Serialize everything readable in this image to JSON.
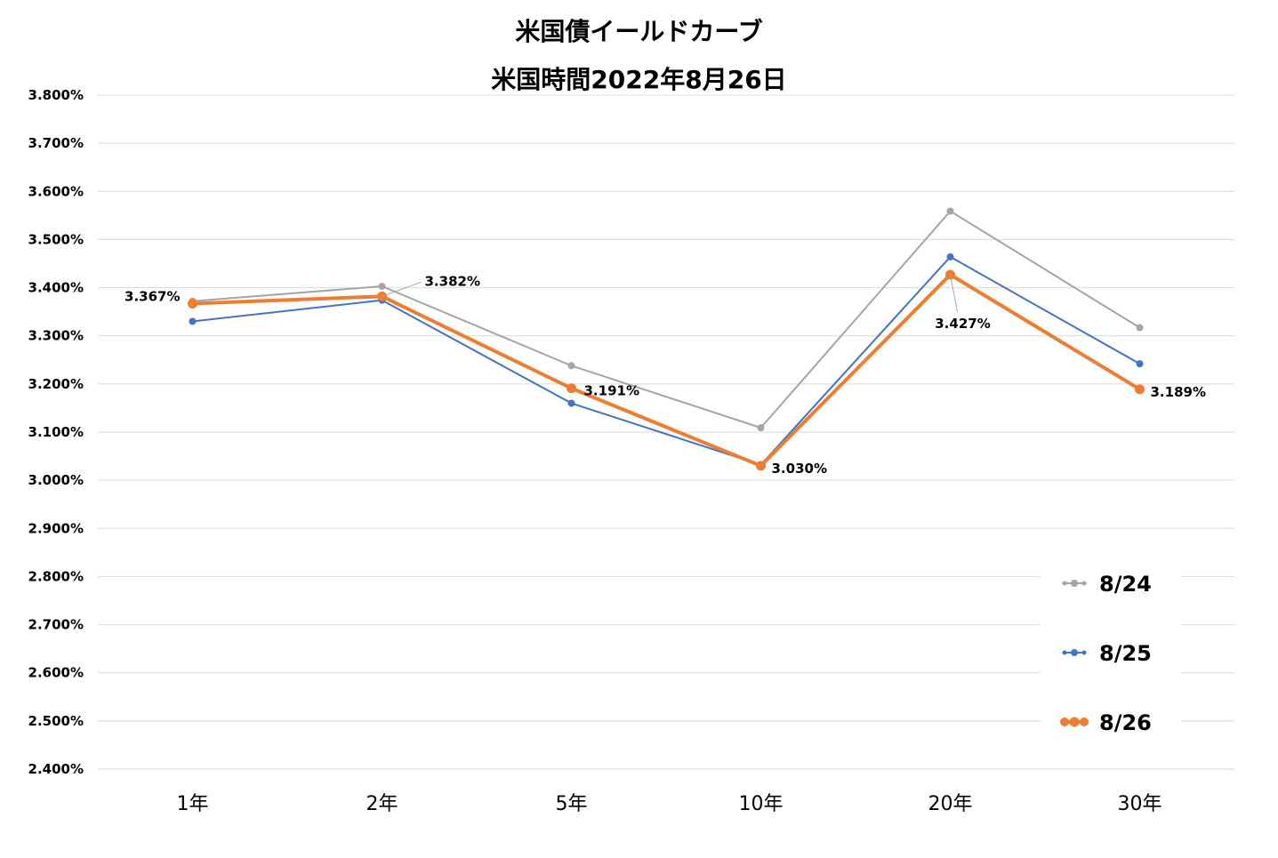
{
  "chart_data": {
    "type": "line",
    "title": "米国債イールドカーブ",
    "subtitle": "米国時間2022年8月26日",
    "categories": [
      "1年",
      "2年",
      "5年",
      "10年",
      "20年",
      "30年"
    ],
    "y_ticks": [
      "3.800%",
      "3.700%",
      "3.600%",
      "3.500%",
      "3.400%",
      "3.300%",
      "3.200%",
      "3.100%",
      "3.000%",
      "2.900%",
      "2.800%",
      "2.700%",
      "2.600%",
      "2.500%",
      "2.400%"
    ],
    "ylim": [
      2.4,
      3.8
    ],
    "grid": true,
    "legend_position": "bottom-right",
    "series": [
      {
        "name": "8/24",
        "color": "#a5a5a5",
        "values": [
          3.372,
          3.403,
          3.238,
          3.109,
          3.559,
          3.317
        ]
      },
      {
        "name": "8/25",
        "color": "#4472c4",
        "values": [
          3.33,
          3.374,
          3.16,
          3.032,
          3.464,
          3.242
        ]
      },
      {
        "name": "8/26",
        "color": "#ed7d31",
        "values": [
          3.367,
          3.382,
          3.191,
          3.03,
          3.427,
          3.189
        ]
      }
    ],
    "data_labels": [
      {
        "series": "8/26",
        "category": "1年",
        "text": "3.367%"
      },
      {
        "series": "8/26",
        "category": "2年",
        "text": "3.382%"
      },
      {
        "series": "8/26",
        "category": "5年",
        "text": "3.191%"
      },
      {
        "series": "8/26",
        "category": "10年",
        "text": "3.030%"
      },
      {
        "series": "8/26",
        "category": "20年",
        "text": "3.427%"
      },
      {
        "series": "8/26",
        "category": "30年",
        "text": "3.189%"
      }
    ]
  }
}
